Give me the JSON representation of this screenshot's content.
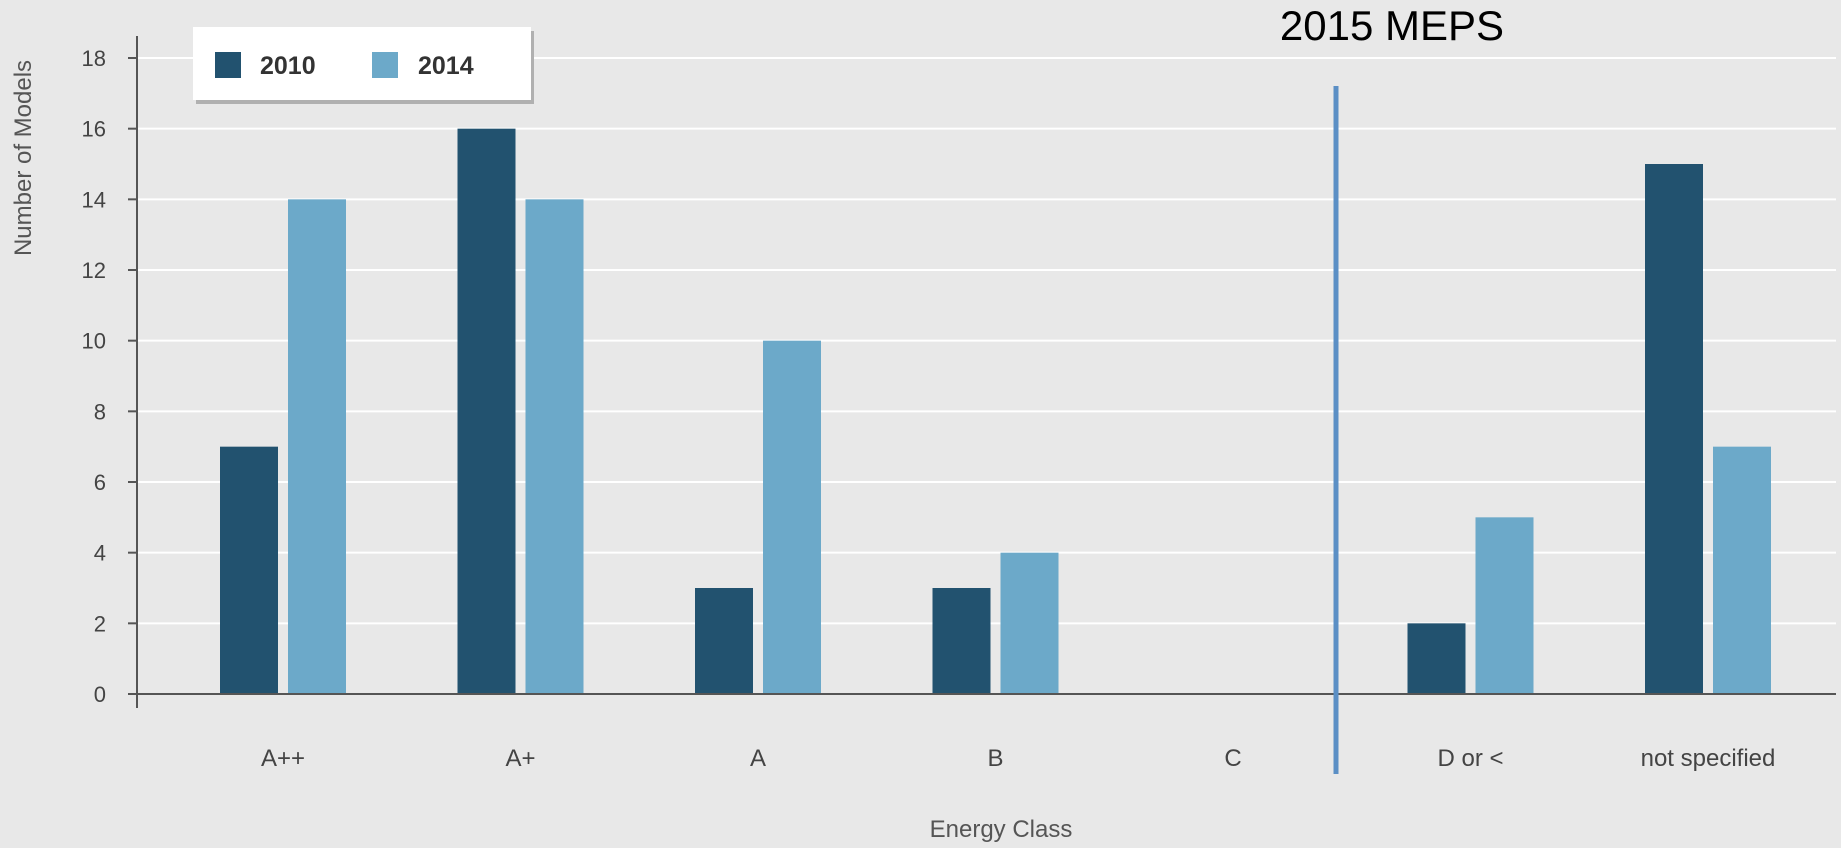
{
  "chart_data": {
    "type": "bar",
    "title": "",
    "xlabel": "Energy Class",
    "ylabel": "Number of Models",
    "ylim": [
      0,
      18
    ],
    "yticks": [
      0,
      2,
      4,
      6,
      8,
      10,
      12,
      14,
      16,
      18
    ],
    "grid": true,
    "legend_position": "top-left",
    "categories": [
      "A++",
      "A+",
      "A",
      "B",
      "C",
      "D or <",
      "not specified"
    ],
    "series": [
      {
        "name": "2010",
        "color": "#22526f",
        "values": [
          7,
          16,
          3,
          3,
          0,
          2,
          15
        ]
      },
      {
        "name": "2014",
        "color": "#6ca9c9",
        "values": [
          14,
          14,
          10,
          4,
          0,
          5,
          7
        ]
      }
    ],
    "annotations": [
      {
        "text": "2015 MEPS",
        "type": "vertical-line",
        "between": [
          "C",
          "D or <"
        ],
        "color": "#5b8fc5"
      }
    ]
  }
}
